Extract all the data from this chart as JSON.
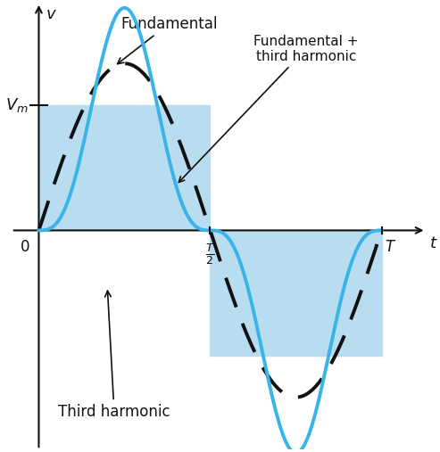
{
  "background_color": "#ffffff",
  "blue_color": "#3ab4e8",
  "dashed_color": "#111111",
  "fill_color": "#b8dcf0",
  "Vm": 1.0,
  "T": 1.0,
  "fundamental_amplitude": 1.333,
  "third_harmonic_amplitude": 0.444,
  "xlim": [
    -0.08,
    1.13
  ],
  "ylim": [
    -1.75,
    1.82
  ],
  "axis_color": "#111111",
  "label_fundamental": "Fundamental",
  "label_composite": "Fundamental +\nthird harmonic",
  "label_third": "Third harmonic",
  "label_Vm": "$V_m$",
  "label_v": "$v$",
  "label_t": "$t$",
  "label_0": "0",
  "label_T2": "$\\frac{T}{2}$",
  "label_T": "$T$",
  "n_points": 3000
}
